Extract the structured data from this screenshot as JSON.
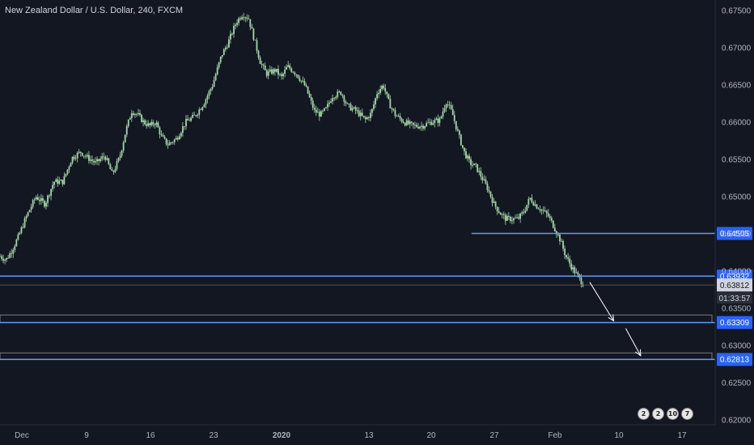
{
  "title": "New Zealand Dollar / U.S. Dollar, 240, FXCM",
  "colors": {
    "background": "#131722",
    "candle": "#a5d6a7",
    "level_line": "#5b9cf6",
    "axis_text": "#b2b5be"
  },
  "badges": [
    "2",
    "2",
    "10",
    "7"
  ],
  "chart_data": {
    "type": "candlestick",
    "title": "New Zealand Dollar / U.S. Dollar, 240, FXCM",
    "ylim": [
      0.6195,
      0.676
    ],
    "y_ticks": [
      "0.67500",
      "0.67000",
      "0.66500",
      "0.66000",
      "0.65500",
      "0.65000",
      "0.64500",
      "0.64000",
      "0.63500",
      "0.63000",
      "0.62500",
      "0.62000"
    ],
    "x_ticks": [
      "Dec",
      "9",
      "16",
      "23",
      "2020",
      "13",
      "20",
      "27",
      "Feb",
      "10",
      "17"
    ],
    "path": [
      [
        0,
        0.642
      ],
      [
        4,
        0.6415
      ],
      [
        8,
        0.6428
      ],
      [
        12,
        0.6445
      ],
      [
        18,
        0.6475
      ],
      [
        24,
        0.65
      ],
      [
        30,
        0.649
      ],
      [
        36,
        0.652
      ],
      [
        42,
        0.652
      ],
      [
        48,
        0.6552
      ],
      [
        54,
        0.656
      ],
      [
        58,
        0.6553
      ],
      [
        64,
        0.6545
      ],
      [
        70,
        0.6555
      ],
      [
        75,
        0.653
      ],
      [
        80,
        0.6553
      ],
      [
        84,
        0.6588
      ],
      [
        88,
        0.6615
      ],
      [
        92,
        0.661
      ],
      [
        96,
        0.66
      ],
      [
        100,
        0.6595
      ],
      [
        104,
        0.66
      ],
      [
        108,
        0.658
      ],
      [
        112,
        0.657
      ],
      [
        118,
        0.6578
      ],
      [
        124,
        0.66
      ],
      [
        130,
        0.6608
      ],
      [
        136,
        0.6625
      ],
      [
        142,
        0.665
      ],
      [
        148,
        0.669
      ],
      [
        152,
        0.6705
      ],
      [
        158,
        0.6735
      ],
      [
        162,
        0.6745
      ],
      [
        166,
        0.674
      ],
      [
        170,
        0.671
      ],
      [
        174,
        0.668
      ],
      [
        178,
        0.6665
      ],
      [
        184,
        0.667
      ],
      [
        188,
        0.666
      ],
      [
        192,
        0.6675
      ],
      [
        198,
        0.6665
      ],
      [
        204,
        0.6648
      ],
      [
        210,
        0.6615
      ],
      [
        214,
        0.661
      ],
      [
        218,
        0.6618
      ],
      [
        222,
        0.6635
      ],
      [
        228,
        0.664
      ],
      [
        232,
        0.6622
      ],
      [
        238,
        0.6615
      ],
      [
        244,
        0.6603
      ],
      [
        248,
        0.6612
      ],
      [
        252,
        0.664
      ],
      [
        256,
        0.665
      ],
      [
        260,
        0.6625
      ],
      [
        264,
        0.661
      ],
      [
        270,
        0.66
      ],
      [
        276,
        0.6595
      ],
      [
        282,
        0.6595
      ],
      [
        288,
        0.66
      ],
      [
        294,
        0.6603
      ],
      [
        298,
        0.6628
      ],
      [
        302,
        0.6613
      ],
      [
        306,
        0.6585
      ],
      [
        310,
        0.656
      ],
      [
        314,
        0.6545
      ],
      [
        318,
        0.654
      ],
      [
        322,
        0.6525
      ],
      [
        326,
        0.651
      ],
      [
        330,
        0.649
      ],
      [
        334,
        0.6478
      ],
      [
        338,
        0.647
      ],
      [
        342,
        0.647
      ],
      [
        346,
        0.647
      ],
      [
        350,
        0.648
      ],
      [
        354,
        0.6498
      ],
      [
        358,
        0.6488
      ],
      [
        362,
        0.6482
      ],
      [
        366,
        0.6475
      ],
      [
        370,
        0.646
      ],
      [
        374,
        0.6443
      ],
      [
        378,
        0.642
      ],
      [
        382,
        0.6405
      ],
      [
        386,
        0.6393
      ],
      [
        390,
        0.6381
      ]
    ],
    "levels": [
      {
        "price": 0.64505,
        "label": "0.64505",
        "from_day": 315
      },
      {
        "price": 0.63932,
        "label": "0.63932",
        "from_day": 0
      },
      {
        "price": 0.63309,
        "label": "0.63309",
        "from_day": 0
      },
      {
        "price": 0.62813,
        "label": "0.62813",
        "from_day": 0
      }
    ],
    "zones": [
      {
        "top": 0.6341,
        "bottom": 0.63309
      },
      {
        "top": 0.629,
        "bottom": 0.62813
      }
    ],
    "current_price": {
      "label": "0.63812",
      "countdown": "01:33:57"
    },
    "arrows": [
      {
        "from": [
          394,
          0.6385
        ],
        "to": [
          410,
          0.6333
        ]
      },
      {
        "from": [
          418,
          0.6323
        ],
        "to": [
          428,
          0.62863
        ]
      }
    ],
    "grid": false
  }
}
